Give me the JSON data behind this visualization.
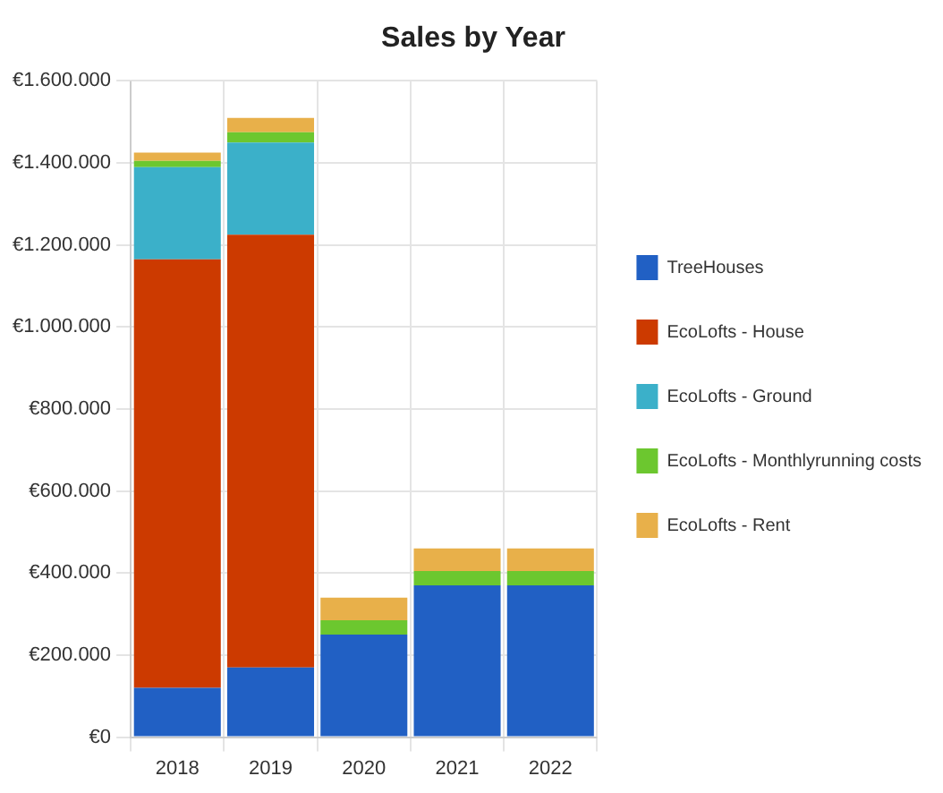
{
  "chart_data": {
    "type": "bar",
    "title": "Sales by Year",
    "stacked": true,
    "grid": true,
    "legend": "right",
    "categories": [
      "2018",
      "2019",
      "2020",
      "2021",
      "2022"
    ],
    "ylim": [
      0,
      1600000
    ],
    "yticks": [
      {
        "value": 0,
        "label": "€0"
      },
      {
        "value": 200000,
        "label": "€200.000"
      },
      {
        "value": 400000,
        "label": "€400.000"
      },
      {
        "value": 600000,
        "label": "€600.000"
      },
      {
        "value": 800000,
        "label": "€800.000"
      },
      {
        "value": 1000000,
        "label": "€1.000.000"
      },
      {
        "value": 1200000,
        "label": "€1.200.000"
      },
      {
        "value": 1400000,
        "label": "€1.400.000"
      },
      {
        "value": 1600000,
        "label": "€1.600.000"
      }
    ],
    "series": [
      {
        "name": "TreeHouses",
        "color": "#2160c4",
        "values": [
          120000,
          170000,
          250000,
          370000,
          370000
        ]
      },
      {
        "name": "EcoLofts - House",
        "color": "#cc3a00",
        "values": [
          1045000,
          1055000,
          0,
          0,
          0
        ]
      },
      {
        "name": "EcoLofts - Ground",
        "color": "#3bb0c9",
        "values": [
          225000,
          225000,
          0,
          0,
          0
        ]
      },
      {
        "name": "EcoLofts - Monthlyrunning costs",
        "color": "#6cc72f",
        "values": [
          15000,
          25000,
          35000,
          35000,
          35000
        ]
      },
      {
        "name": "EcoLofts - Rent",
        "color": "#e8b04a",
        "values": [
          20000,
          35000,
          55000,
          55000,
          55000
        ]
      }
    ]
  }
}
